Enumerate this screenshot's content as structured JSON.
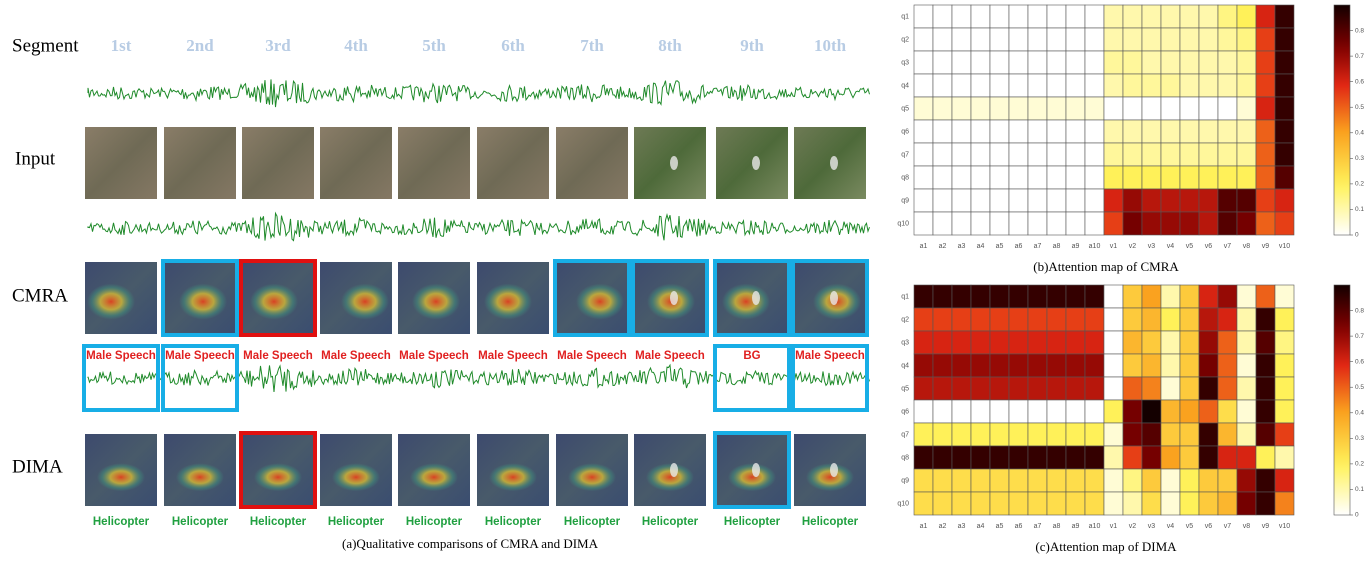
{
  "figure_a": {
    "row_labels": [
      "Segment",
      "Input",
      "CMRA",
      "DIMA"
    ],
    "segments": [
      "1st",
      "2nd",
      "3rd",
      "4th",
      "5th",
      "6th",
      "7th",
      "8th",
      "9th",
      "10th"
    ],
    "cmra_labels": [
      "Male Speech",
      "Male Speech",
      "Male Speech",
      "Male Speech",
      "Male Speech",
      "Male Speech",
      "Male Speech",
      "Male Speech",
      "BG",
      "Male Speech"
    ],
    "dima_labels": [
      "Helicopter",
      "Helicopter",
      "Helicopter",
      "Helicopter",
      "Helicopter",
      "Helicopter",
      "Helicopter",
      "Helicopter",
      "Helicopter",
      "Helicopter"
    ],
    "caption": "(a)Qualitative comparisons of CMRA and DIMA"
  },
  "chart_data": [
    {
      "type": "heatmap",
      "caption": "(b)Attention map of CMRA",
      "x_labels": [
        "a1",
        "a2",
        "a3",
        "a4",
        "a5",
        "a6",
        "a7",
        "a8",
        "a9",
        "a10",
        "v1",
        "v2",
        "v3",
        "v4",
        "v5",
        "v6",
        "v7",
        "v8",
        "v9",
        "v10"
      ],
      "y_labels": [
        "q1",
        "q2",
        "q3",
        "q4",
        "q5",
        "q6",
        "q7",
        "q8",
        "q9",
        "q10"
      ],
      "values": [
        [
          0,
          0,
          0,
          0,
          0,
          0,
          0,
          0,
          0,
          0,
          0.1,
          0.1,
          0.1,
          0.1,
          0.1,
          0.1,
          0.15,
          0.2,
          0.6,
          0.85
        ],
        [
          0,
          0,
          0,
          0,
          0,
          0,
          0,
          0,
          0,
          0,
          0.1,
          0.1,
          0.1,
          0.1,
          0.1,
          0.1,
          0.12,
          0.15,
          0.55,
          0.85
        ],
        [
          0,
          0,
          0,
          0,
          0,
          0,
          0,
          0,
          0,
          0,
          0.12,
          0.12,
          0.1,
          0.1,
          0.1,
          0.1,
          0.1,
          0.12,
          0.55,
          0.85
        ],
        [
          0,
          0,
          0,
          0,
          0,
          0,
          0,
          0,
          0,
          0,
          0.1,
          0.12,
          0.12,
          0.12,
          0.1,
          0.1,
          0.1,
          0.12,
          0.55,
          0.85
        ],
        [
          0.05,
          0.05,
          0.05,
          0.05,
          0.05,
          0.05,
          0.05,
          0.05,
          0.05,
          0.05,
          0,
          0,
          0,
          0,
          0,
          0,
          0,
          0.05,
          0.6,
          0.85
        ],
        [
          0,
          0,
          0,
          0,
          0,
          0,
          0,
          0,
          0,
          0,
          0.1,
          0.1,
          0.1,
          0.1,
          0.1,
          0.1,
          0.1,
          0.1,
          0.5,
          0.85
        ],
        [
          0,
          0,
          0,
          0,
          0,
          0,
          0,
          0,
          0,
          0,
          0.12,
          0.12,
          0.12,
          0.12,
          0.12,
          0.12,
          0.12,
          0.12,
          0.5,
          0.85
        ],
        [
          0,
          0,
          0,
          0,
          0,
          0,
          0,
          0,
          0,
          0,
          0.2,
          0.2,
          0.2,
          0.2,
          0.2,
          0.2,
          0.2,
          0.2,
          0.5,
          0.8
        ],
        [
          0,
          0,
          0,
          0,
          0,
          0,
          0,
          0,
          0,
          0,
          0.6,
          0.7,
          0.65,
          0.65,
          0.65,
          0.65,
          0.8,
          0.8,
          0.55,
          0.6
        ],
        [
          0,
          0,
          0,
          0,
          0,
          0,
          0,
          0,
          0,
          0,
          0.55,
          0.75,
          0.7,
          0.7,
          0.7,
          0.65,
          0.8,
          0.75,
          0.5,
          0.55
        ]
      ],
      "clim": [
        0,
        0.9
      ],
      "cticks": [
        0,
        0.1,
        0.2,
        0.3,
        0.4,
        0.5,
        0.6,
        0.7,
        0.8
      ]
    },
    {
      "type": "heatmap",
      "caption": "(c)Attention map of DIMA",
      "x_labels": [
        "a1",
        "a2",
        "a3",
        "a4",
        "a5",
        "a6",
        "a7",
        "a8",
        "a9",
        "a10",
        "v1",
        "v2",
        "v3",
        "v4",
        "v5",
        "v6",
        "v7",
        "v8",
        "v9",
        "v10"
      ],
      "y_labels": [
        "q1",
        "q2",
        "q3",
        "q4",
        "q5",
        "q6",
        "q7",
        "q8",
        "q9",
        "q10"
      ],
      "values": [
        [
          0.85,
          0.85,
          0.85,
          0.85,
          0.85,
          0.85,
          0.85,
          0.85,
          0.85,
          0.85,
          0,
          0.3,
          0.4,
          0.1,
          0.3,
          0.6,
          0.7,
          0.05,
          0.5,
          0.05
        ],
        [
          0.55,
          0.55,
          0.55,
          0.55,
          0.55,
          0.55,
          0.55,
          0.55,
          0.55,
          0.55,
          0,
          0.3,
          0.35,
          0.2,
          0.3,
          0.65,
          0.6,
          0.1,
          0.85,
          0.2
        ],
        [
          0.6,
          0.6,
          0.6,
          0.6,
          0.6,
          0.6,
          0.6,
          0.6,
          0.6,
          0.6,
          0,
          0.35,
          0.3,
          0.1,
          0.3,
          0.7,
          0.5,
          0.1,
          0.8,
          0.15
        ],
        [
          0.7,
          0.7,
          0.7,
          0.7,
          0.7,
          0.7,
          0.7,
          0.7,
          0.7,
          0.7,
          0,
          0.3,
          0.35,
          0.1,
          0.3,
          0.75,
          0.5,
          0.05,
          0.85,
          0.2
        ],
        [
          0.65,
          0.65,
          0.65,
          0.65,
          0.65,
          0.65,
          0.65,
          0.65,
          0.65,
          0.65,
          0,
          0.5,
          0.45,
          0.05,
          0.3,
          0.85,
          0.5,
          0.1,
          0.85,
          0.2
        ],
        [
          0,
          0,
          0,
          0,
          0,
          0,
          0,
          0,
          0,
          0,
          0.2,
          0.75,
          0.9,
          0.35,
          0.4,
          0.5,
          0.25,
          0.05,
          0.85,
          0.2
        ],
        [
          0.2,
          0.2,
          0.2,
          0.2,
          0.2,
          0.2,
          0.2,
          0.2,
          0.2,
          0.2,
          0.05,
          0.75,
          0.8,
          0.3,
          0.3,
          0.85,
          0.35,
          0.1,
          0.8,
          0.55
        ],
        [
          0.85,
          0.85,
          0.85,
          0.85,
          0.85,
          0.85,
          0.85,
          0.85,
          0.85,
          0.85,
          0.1,
          0.55,
          0.75,
          0.4,
          0.3,
          0.85,
          0.6,
          0.6,
          0.2,
          0.1
        ],
        [
          0.25,
          0.25,
          0.25,
          0.25,
          0.25,
          0.25,
          0.25,
          0.25,
          0.25,
          0.25,
          0.05,
          0.15,
          0.3,
          0.05,
          0.2,
          0.3,
          0.3,
          0.7,
          0.85,
          0.6
        ],
        [
          0.25,
          0.25,
          0.25,
          0.25,
          0.25,
          0.25,
          0.25,
          0.25,
          0.25,
          0.25,
          0.05,
          0.1,
          0.25,
          0.05,
          0.2,
          0.3,
          0.35,
          0.75,
          0.85,
          0.45
        ]
      ],
      "clim": [
        0,
        0.9
      ],
      "cticks": [
        0,
        0.1,
        0.2,
        0.3,
        0.4,
        0.5,
        0.6,
        0.7,
        0.8
      ]
    }
  ]
}
